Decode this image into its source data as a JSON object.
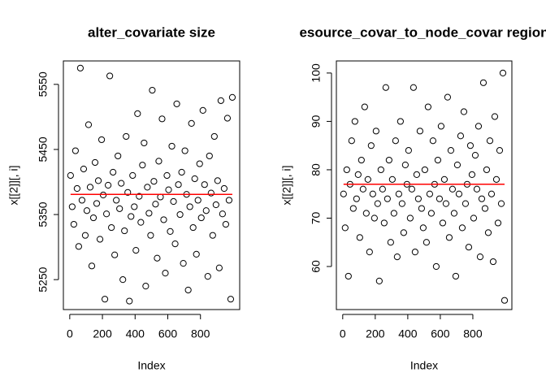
{
  "chart_data": [
    {
      "type": "scatter",
      "title": "alter_covariate size",
      "xlabel": "Index",
      "ylabel": "x[[2]][, i]",
      "color": "#000000",
      "mean_line": 5381,
      "mean_line_color": "#ff0000",
      "xlim": [
        -39,
        1040
      ],
      "ylim": [
        5204,
        5586
      ],
      "xticks": [
        0,
        200,
        400,
        600,
        800
      ],
      "yticks": [
        5250,
        5350,
        5450,
        5550
      ],
      "x": [
        5,
        15,
        25,
        35,
        45,
        55,
        65,
        75,
        85,
        95,
        105,
        115,
        125,
        135,
        145,
        155,
        165,
        175,
        185,
        195,
        205,
        215,
        225,
        235,
        245,
        255,
        265,
        275,
        285,
        295,
        305,
        315,
        325,
        335,
        345,
        355,
        365,
        375,
        385,
        395,
        405,
        415,
        425,
        435,
        445,
        455,
        465,
        475,
        485,
        495,
        505,
        515,
        525,
        535,
        545,
        555,
        565,
        575,
        585,
        595,
        605,
        615,
        625,
        635,
        645,
        655,
        665,
        675,
        685,
        695,
        705,
        715,
        725,
        735,
        745,
        755,
        765,
        775,
        785,
        795,
        805,
        815,
        825,
        835,
        845,
        855,
        865,
        875,
        885,
        895,
        905,
        915,
        925,
        935,
        945,
        955,
        965,
        975,
        985,
        995
      ],
      "values": [
        5410,
        5362,
        5335,
        5448,
        5390,
        5301,
        5575,
        5372,
        5420,
        5318,
        5356,
        5488,
        5392,
        5271,
        5345,
        5430,
        5367,
        5402,
        5312,
        5465,
        5380,
        5220,
        5351,
        5395,
        5563,
        5330,
        5415,
        5288,
        5372,
        5440,
        5359,
        5398,
        5250,
        5325,
        5470,
        5384,
        5217,
        5347,
        5410,
        5362,
        5295,
        5505,
        5378,
        5338,
        5426,
        5460,
        5240,
        5392,
        5352,
        5318,
        5541,
        5401,
        5366,
        5283,
        5432,
        5377,
        5497,
        5342,
        5260,
        5410,
        5388,
        5324,
        5455,
        5370,
        5305,
        5520,
        5396,
        5350,
        5415,
        5275,
        5448,
        5381,
        5234,
        5362,
        5490,
        5330,
        5405,
        5289,
        5372,
        5428,
        5345,
        5510,
        5396,
        5356,
        5255,
        5440,
        5383,
        5318,
        5470,
        5365,
        5402,
        5268,
        5525,
        5351,
        5390,
        5335,
        5498,
        5372,
        5220,
        5530
      ]
    },
    {
      "type": "scatter",
      "title": "esource_covar_to_node_covar region",
      "xlabel": "Index",
      "ylabel": "x[[2]][, i]",
      "color": "#000000",
      "mean_line": 77,
      "mean_line_color": "#ff0000",
      "xlim": [
        -39,
        1040
      ],
      "ylim": [
        51.1,
        102.5
      ],
      "xticks": [
        0,
        200,
        400,
        600,
        800
      ],
      "yticks": [
        60,
        70,
        80,
        90,
        100
      ],
      "x": [
        5,
        15,
        25,
        35,
        45,
        55,
        65,
        75,
        85,
        95,
        105,
        115,
        125,
        135,
        145,
        155,
        165,
        175,
        185,
        195,
        205,
        215,
        225,
        235,
        245,
        255,
        265,
        275,
        285,
        295,
        305,
        315,
        325,
        335,
        345,
        355,
        365,
        375,
        385,
        395,
        405,
        415,
        425,
        435,
        445,
        455,
        465,
        475,
        485,
        495,
        505,
        515,
        525,
        535,
        545,
        555,
        565,
        575,
        585,
        595,
        605,
        615,
        625,
        635,
        645,
        655,
        665,
        675,
        685,
        695,
        705,
        715,
        725,
        735,
        745,
        755,
        765,
        775,
        785,
        795,
        805,
        815,
        825,
        835,
        845,
        855,
        865,
        875,
        885,
        895,
        905,
        915,
        925,
        935,
        945,
        955,
        965,
        975,
        985,
        995
      ],
      "values": [
        75,
        68,
        80,
        58,
        77,
        86,
        72,
        90,
        74,
        79,
        66,
        82,
        76,
        93,
        71,
        78,
        63,
        85,
        75,
        70,
        88,
        73,
        57,
        80,
        76,
        69,
        97,
        74,
        82,
        65,
        78,
        71,
        86,
        62,
        75,
        90,
        73,
        67,
        81,
        77,
        84,
        70,
        76,
        97,
        63,
        79,
        74,
        88,
        72,
        68,
        80,
        65,
        93,
        75,
        71,
        86,
        77,
        60,
        82,
        74,
        89,
        69,
        78,
        73,
        95,
        66,
        84,
        76,
        71,
        58,
        81,
        75,
        87,
        68,
        92,
        73,
        77,
        64,
        85,
        79,
        70,
        83,
        76,
        89,
        62,
        74,
        98,
        72,
        80,
        67,
        86,
        75,
        61,
        91,
        78,
        69,
        84,
        73,
        100,
        53
      ]
    }
  ]
}
